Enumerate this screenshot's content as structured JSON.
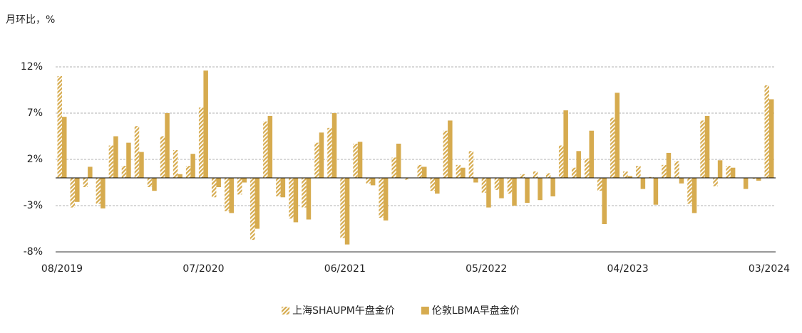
{
  "chart_data": {
    "type": "bar",
    "y_axis_label": "月环比，%",
    "categories": [
      "08/2019",
      null,
      null,
      null,
      null,
      null,
      null,
      null,
      null,
      null,
      null,
      "07/2020",
      null,
      null,
      null,
      null,
      null,
      null,
      null,
      null,
      null,
      null,
      "06/2021",
      null,
      null,
      null,
      null,
      null,
      null,
      null,
      null,
      null,
      null,
      "05/2022",
      null,
      null,
      null,
      null,
      null,
      null,
      null,
      null,
      null,
      null,
      "04/2023",
      null,
      null,
      null,
      null,
      null,
      null,
      null,
      null,
      null,
      null,
      "03/2024"
    ],
    "series": [
      {
        "name": "上海SHAUPM午盘金价",
        "color": "#d6ab4f",
        "fill": "hatched",
        "values": [
          11.0,
          -3.2,
          -1.0,
          -2.8,
          3.5,
          1.3,
          5.6,
          -1.0,
          4.5,
          3.0,
          1.3,
          7.6,
          -2.1,
          -3.6,
          -1.8,
          -6.7,
          6.1,
          -2.0,
          -4.4,
          -3.2,
          3.8,
          5.4,
          -6.5,
          3.7,
          -0.6,
          -4.3,
          2.2,
          -0.2,
          1.4,
          -1.4,
          5.1,
          1.4,
          2.9,
          -1.6,
          -1.3,
          -1.7,
          0.4,
          0.7,
          0.5,
          3.5,
          1.1,
          2.1,
          -1.4,
          6.5,
          0.7,
          1.3,
          0.1,
          1.4,
          1.8,
          -2.8,
          6.2,
          -0.9,
          1.3,
          0,
          -0.1,
          10.0
        ]
      },
      {
        "name": "伦敦LBMA早盘金价",
        "color": "#d6ab4f",
        "fill": "solid",
        "values": [
          6.6,
          -2.6,
          1.2,
          -3.3,
          4.5,
          3.8,
          2.8,
          -1.4,
          7.0,
          0.4,
          2.6,
          11.6,
          -1.0,
          -3.8,
          -0.5,
          -5.5,
          6.7,
          -2.1,
          -4.8,
          -4.5,
          4.9,
          7.0,
          -7.2,
          3.9,
          -0.8,
          -4.6,
          3.7,
          0,
          1.2,
          -1.7,
          6.2,
          1.1,
          -0.5,
          -3.2,
          -2.2,
          -3.0,
          -2.7,
          -2.4,
          -2.0,
          7.3,
          2.9,
          5.1,
          -5.0,
          9.2,
          0.2,
          -1.2,
          -2.9,
          2.7,
          -0.6,
          -3.8,
          6.7,
          1.9,
          1.1,
          -1.2,
          -0.3,
          8.5
        ]
      }
    ],
    "ylim": [
      -8,
      12
    ],
    "yticks": [
      {
        "value": 12,
        "label": "12%"
      },
      {
        "value": 7,
        "label": "7%"
      },
      {
        "value": 2,
        "label": "2%"
      },
      {
        "value": -3,
        "label": "-3%"
      },
      {
        "value": -8,
        "label": "-8%"
      }
    ],
    "grid": true,
    "legend": "bottom"
  }
}
